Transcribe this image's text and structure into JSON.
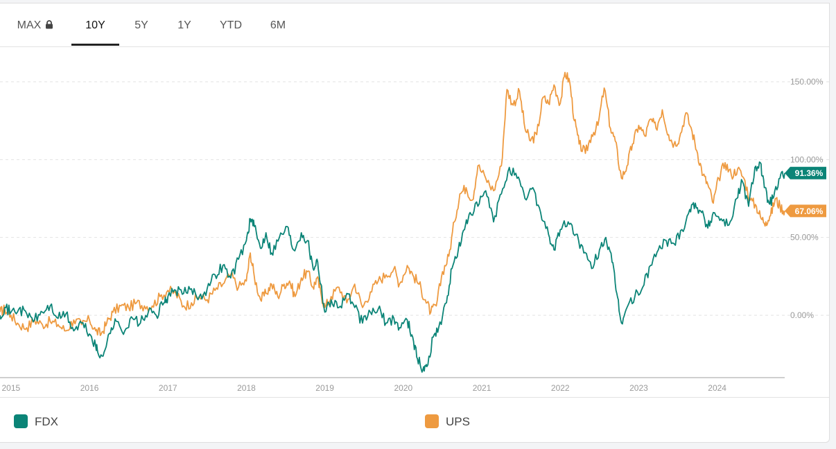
{
  "tabs": [
    {
      "label": "MAX",
      "locked": true,
      "active": false
    },
    {
      "label": "10Y",
      "locked": false,
      "active": true
    },
    {
      "label": "5Y",
      "locked": false,
      "active": false
    },
    {
      "label": "1Y",
      "locked": false,
      "active": false
    },
    {
      "label": "YTD",
      "locked": false,
      "active": false
    },
    {
      "label": "6M",
      "locked": false,
      "active": false
    }
  ],
  "legend": [
    {
      "name": "FDX",
      "color": "#0b8477"
    },
    {
      "name": "UPS",
      "color": "#ee9a40"
    }
  ],
  "chart_data": {
    "type": "line",
    "xlabel": "",
    "ylabel": "",
    "x_range": [
      2014.86,
      2024.86
    ],
    "ylim": [
      -45,
      162
    ],
    "grid": true,
    "y_ticks": [
      {
        "value": 150,
        "label": "150.00%"
      },
      {
        "value": 100,
        "label": "100.00%"
      },
      {
        "value": 50,
        "label": "50.00%"
      },
      {
        "value": 0,
        "label": "0.00%"
      }
    ],
    "x_ticks": [
      "2015",
      "2016",
      "2017",
      "2018",
      "2019",
      "2020",
      "2021",
      "2022",
      "2023",
      "2024"
    ],
    "series": [
      {
        "name": "FDX",
        "color": "#0b8477",
        "last_label": "91.36%",
        "last_value": 91.36,
        "points": [
          [
            2014.86,
            0
          ],
          [
            2014.92,
            5
          ],
          [
            2015.0,
            2
          ],
          [
            2015.1,
            4
          ],
          [
            2015.2,
            1
          ],
          [
            2015.3,
            -3
          ],
          [
            2015.4,
            2
          ],
          [
            2015.5,
            6
          ],
          [
            2015.6,
            -2
          ],
          [
            2015.7,
            1
          ],
          [
            2015.8,
            -10
          ],
          [
            2015.9,
            -5
          ],
          [
            2016.0,
            -12
          ],
          [
            2016.08,
            -20
          ],
          [
            2016.12,
            -26
          ],
          [
            2016.2,
            -22
          ],
          [
            2016.28,
            -8
          ],
          [
            2016.35,
            -4
          ],
          [
            2016.45,
            -10
          ],
          [
            2016.55,
            -2
          ],
          [
            2016.65,
            -5
          ],
          [
            2016.75,
            2
          ],
          [
            2016.85,
            0
          ],
          [
            2016.95,
            8
          ],
          [
            2017.0,
            12
          ],
          [
            2017.1,
            16
          ],
          [
            2017.2,
            14
          ],
          [
            2017.3,
            17
          ],
          [
            2017.4,
            12
          ],
          [
            2017.5,
            17
          ],
          [
            2017.6,
            26
          ],
          [
            2017.7,
            32
          ],
          [
            2017.8,
            24
          ],
          [
            2017.9,
            36
          ],
          [
            2018.0,
            48
          ],
          [
            2018.05,
            62
          ],
          [
            2018.1,
            57
          ],
          [
            2018.18,
            43
          ],
          [
            2018.25,
            53
          ],
          [
            2018.32,
            40
          ],
          [
            2018.42,
            50
          ],
          [
            2018.52,
            57
          ],
          [
            2018.6,
            42
          ],
          [
            2018.7,
            53
          ],
          [
            2018.78,
            48
          ],
          [
            2018.85,
            30
          ],
          [
            2018.9,
            36
          ],
          [
            2018.95,
            20
          ],
          [
            2019.0,
            2
          ],
          [
            2019.08,
            10
          ],
          [
            2019.18,
            5
          ],
          [
            2019.28,
            14
          ],
          [
            2019.38,
            5
          ],
          [
            2019.48,
            -5
          ],
          [
            2019.58,
            2
          ],
          [
            2019.68,
            4
          ],
          [
            2019.78,
            -5
          ],
          [
            2019.88,
            -2
          ],
          [
            2019.95,
            -8
          ],
          [
            2020.05,
            -3
          ],
          [
            2020.12,
            -14
          ],
          [
            2020.18,
            -28
          ],
          [
            2020.25,
            -35
          ],
          [
            2020.3,
            -33
          ],
          [
            2020.38,
            -14
          ],
          [
            2020.45,
            -8
          ],
          [
            2020.55,
            8
          ],
          [
            2020.62,
            30
          ],
          [
            2020.7,
            42
          ],
          [
            2020.78,
            55
          ],
          [
            2020.85,
            66
          ],
          [
            2020.95,
            70
          ],
          [
            2021.05,
            80
          ],
          [
            2021.15,
            60
          ],
          [
            2021.25,
            78
          ],
          [
            2021.35,
            95
          ],
          [
            2021.45,
            88
          ],
          [
            2021.55,
            75
          ],
          [
            2021.65,
            82
          ],
          [
            2021.75,
            66
          ],
          [
            2021.85,
            52
          ],
          [
            2021.92,
            42
          ],
          [
            2022.0,
            55
          ],
          [
            2022.1,
            60
          ],
          [
            2022.2,
            52
          ],
          [
            2022.3,
            40
          ],
          [
            2022.4,
            30
          ],
          [
            2022.5,
            42
          ],
          [
            2022.58,
            50
          ],
          [
            2022.66,
            34
          ],
          [
            2022.72,
            14
          ],
          [
            2022.78,
            -5
          ],
          [
            2022.85,
            5
          ],
          [
            2022.95,
            12
          ],
          [
            2023.05,
            18
          ],
          [
            2023.15,
            32
          ],
          [
            2023.25,
            42
          ],
          [
            2023.35,
            48
          ],
          [
            2023.45,
            46
          ],
          [
            2023.55,
            55
          ],
          [
            2023.65,
            68
          ],
          [
            2023.72,
            72
          ],
          [
            2023.8,
            66
          ],
          [
            2023.88,
            56
          ],
          [
            2023.95,
            66
          ],
          [
            2024.05,
            62
          ],
          [
            2024.15,
            58
          ],
          [
            2024.25,
            75
          ],
          [
            2024.32,
            86
          ],
          [
            2024.4,
            70
          ],
          [
            2024.48,
            95
          ],
          [
            2024.55,
            98
          ],
          [
            2024.6,
            82
          ],
          [
            2024.66,
            72
          ],
          [
            2024.72,
            76
          ],
          [
            2024.8,
            88
          ],
          [
            2024.86,
            91.36
          ]
        ]
      },
      {
        "name": "UPS",
        "color": "#ee9a40",
        "last_label": "67.06%",
        "last_value": 67.06,
        "points": [
          [
            2014.86,
            2
          ],
          [
            2014.92,
            4
          ],
          [
            2015.0,
            0
          ],
          [
            2015.1,
            -6
          ],
          [
            2015.2,
            -8
          ],
          [
            2015.3,
            -3
          ],
          [
            2015.4,
            -6
          ],
          [
            2015.5,
            -4
          ],
          [
            2015.6,
            -6
          ],
          [
            2015.7,
            -10
          ],
          [
            2015.8,
            -3
          ],
          [
            2015.9,
            -6
          ],
          [
            2016.0,
            -3
          ],
          [
            2016.08,
            -10
          ],
          [
            2016.15,
            -12
          ],
          [
            2016.22,
            -5
          ],
          [
            2016.3,
            2
          ],
          [
            2016.4,
            6
          ],
          [
            2016.5,
            5
          ],
          [
            2016.6,
            8
          ],
          [
            2016.7,
            6
          ],
          [
            2016.8,
            6
          ],
          [
            2016.9,
            12
          ],
          [
            2017.0,
            16
          ],
          [
            2017.1,
            14
          ],
          [
            2017.2,
            6
          ],
          [
            2017.3,
            8
          ],
          [
            2017.4,
            12
          ],
          [
            2017.5,
            10
          ],
          [
            2017.6,
            16
          ],
          [
            2017.7,
            20
          ],
          [
            2017.8,
            26
          ],
          [
            2017.9,
            18
          ],
          [
            2018.0,
            22
          ],
          [
            2018.05,
            40
          ],
          [
            2018.1,
            25
          ],
          [
            2018.18,
            10
          ],
          [
            2018.25,
            14
          ],
          [
            2018.32,
            20
          ],
          [
            2018.4,
            12
          ],
          [
            2018.48,
            20
          ],
          [
            2018.55,
            22
          ],
          [
            2018.62,
            12
          ],
          [
            2018.7,
            24
          ],
          [
            2018.78,
            28
          ],
          [
            2018.85,
            18
          ],
          [
            2018.9,
            24
          ],
          [
            2018.95,
            14
          ],
          [
            2019.0,
            5
          ],
          [
            2019.08,
            12
          ],
          [
            2019.18,
            18
          ],
          [
            2019.28,
            8
          ],
          [
            2019.38,
            20
          ],
          [
            2019.48,
            5
          ],
          [
            2019.58,
            15
          ],
          [
            2019.68,
            22
          ],
          [
            2019.78,
            26
          ],
          [
            2019.88,
            30
          ],
          [
            2019.95,
            20
          ],
          [
            2020.05,
            32
          ],
          [
            2020.12,
            26
          ],
          [
            2020.2,
            20
          ],
          [
            2020.28,
            10
          ],
          [
            2020.35,
            2
          ],
          [
            2020.42,
            6
          ],
          [
            2020.5,
            28
          ],
          [
            2020.58,
            38
          ],
          [
            2020.65,
            60
          ],
          [
            2020.72,
            78
          ],
          [
            2020.8,
            82
          ],
          [
            2020.88,
            74
          ],
          [
            2020.95,
            96
          ],
          [
            2021.05,
            88
          ],
          [
            2021.15,
            80
          ],
          [
            2021.25,
            96
          ],
          [
            2021.32,
            145
          ],
          [
            2021.4,
            135
          ],
          [
            2021.48,
            144
          ],
          [
            2021.55,
            120
          ],
          [
            2021.62,
            112
          ],
          [
            2021.7,
            116
          ],
          [
            2021.78,
            140
          ],
          [
            2021.85,
            136
          ],
          [
            2021.92,
            148
          ],
          [
            2022.0,
            136
          ],
          [
            2022.06,
            156
          ],
          [
            2022.12,
            150
          ],
          [
            2022.18,
            125
          ],
          [
            2022.24,
            110
          ],
          [
            2022.32,
            104
          ],
          [
            2022.4,
            116
          ],
          [
            2022.48,
            122
          ],
          [
            2022.56,
            146
          ],
          [
            2022.64,
            120
          ],
          [
            2022.7,
            112
          ],
          [
            2022.78,
            88
          ],
          [
            2022.85,
            96
          ],
          [
            2022.92,
            110
          ],
          [
            2023.0,
            122
          ],
          [
            2023.08,
            115
          ],
          [
            2023.15,
            126
          ],
          [
            2023.22,
            120
          ],
          [
            2023.3,
            132
          ],
          [
            2023.38,
            116
          ],
          [
            2023.45,
            110
          ],
          [
            2023.52,
            114
          ],
          [
            2023.6,
            130
          ],
          [
            2023.68,
            118
          ],
          [
            2023.75,
            104
          ],
          [
            2023.82,
            90
          ],
          [
            2023.88,
            84
          ],
          [
            2023.95,
            72
          ],
          [
            2024.02,
            88
          ],
          [
            2024.1,
            98
          ],
          [
            2024.18,
            90
          ],
          [
            2024.26,
            94
          ],
          [
            2024.34,
            88
          ],
          [
            2024.42,
            74
          ],
          [
            2024.5,
            70
          ],
          [
            2024.56,
            62
          ],
          [
            2024.62,
            60
          ],
          [
            2024.68,
            64
          ],
          [
            2024.74,
            75
          ],
          [
            2024.8,
            70
          ],
          [
            2024.86,
            67.06
          ]
        ]
      }
    ]
  }
}
